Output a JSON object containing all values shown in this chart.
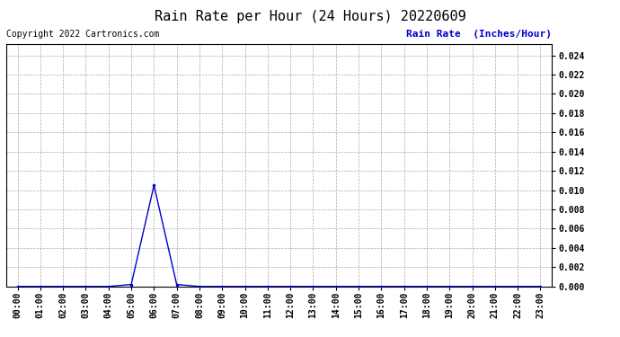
{
  "title": "Rain Rate per Hour (24 Hours) 20220609",
  "copyright_text": "Copyright 2022 Cartronics.com",
  "legend_text": "Rain Rate  (Inches/Hour)",
  "x_labels": [
    "00:00",
    "01:00",
    "02:00",
    "03:00",
    "04:00",
    "05:00",
    "06:00",
    "07:00",
    "08:00",
    "09:00",
    "10:00",
    "11:00",
    "12:00",
    "13:00",
    "14:00",
    "15:00",
    "16:00",
    "17:00",
    "18:00",
    "19:00",
    "20:00",
    "21:00",
    "22:00",
    "23:00"
  ],
  "x_values": [
    0,
    1,
    2,
    3,
    4,
    5,
    6,
    7,
    8,
    9,
    10,
    11,
    12,
    13,
    14,
    15,
    16,
    17,
    18,
    19,
    20,
    21,
    22,
    23
  ],
  "y_values": [
    0,
    0,
    0,
    0,
    0,
    0.0002,
    0.0105,
    0.0002,
    0,
    0,
    0,
    0,
    0,
    0,
    0,
    0,
    0,
    0,
    0,
    0,
    0,
    0,
    0,
    0
  ],
  "ylim": [
    0,
    0.0252
  ],
  "yticks": [
    0.0,
    0.002,
    0.004,
    0.006,
    0.008,
    0.01,
    0.012,
    0.014,
    0.016,
    0.018,
    0.02,
    0.022,
    0.024
  ],
  "line_color": "#0000cc",
  "marker_color": "#0000cc",
  "grid_color": "#aaaaaa",
  "background_color": "#ffffff",
  "title_fontsize": 11,
  "copyright_fontsize": 7,
  "legend_fontsize": 8,
  "tick_fontsize": 7,
  "ytick_fontsize": 7
}
